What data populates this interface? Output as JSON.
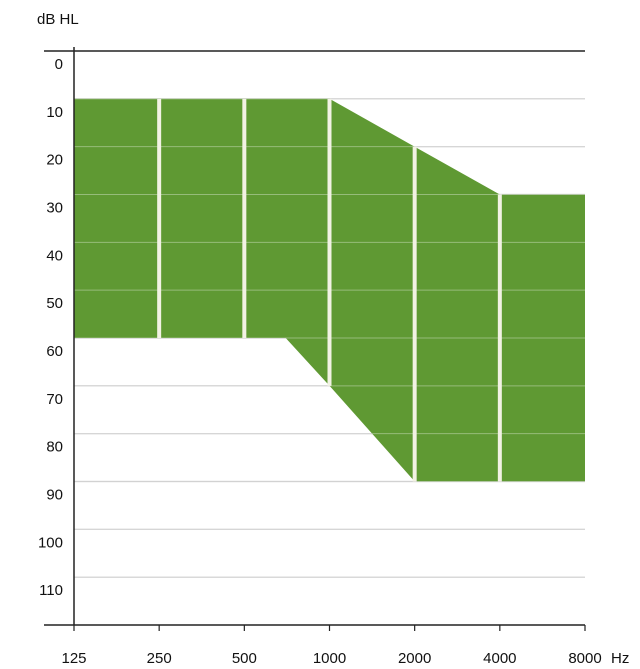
{
  "chart_data": {
    "type": "area",
    "title": "",
    "xlabel": "Hz",
    "ylabel": "dB HL",
    "x_scale": "log2",
    "y_inverted": true,
    "xlim": [
      125,
      8000
    ],
    "ylim": [
      0,
      120
    ],
    "x_ticks": [
      125,
      250,
      500,
      1000,
      2000,
      4000,
      8000
    ],
    "x_tick_labels": [
      "125",
      "250",
      "500",
      "1000",
      "2000",
      "4000",
      "8000"
    ],
    "y_ticks": [
      0,
      10,
      20,
      30,
      40,
      50,
      60,
      70,
      80,
      90,
      100,
      110
    ],
    "y_tick_labels": [
      "0",
      "10",
      "20",
      "30",
      "40",
      "50",
      "60",
      "70",
      "80",
      "90",
      "100",
      "110"
    ],
    "grid": true,
    "colors": {
      "fill": "#5f9933",
      "grid": "#bbbbbb",
      "axis": "#222222",
      "band_separator": "#f2f2e4"
    },
    "fitting_range": {
      "x": [
        125,
        250,
        500,
        1000,
        2000,
        4000,
        8000
      ],
      "upper": [
        10,
        10,
        10,
        10,
        20,
        30,
        30
      ],
      "lower_vertices": [
        [
          125,
          60
        ],
        [
          500,
          60
        ],
        [
          700,
          60
        ],
        [
          1000,
          70
        ],
        [
          2000,
          90
        ],
        [
          8000,
          90
        ]
      ]
    }
  }
}
